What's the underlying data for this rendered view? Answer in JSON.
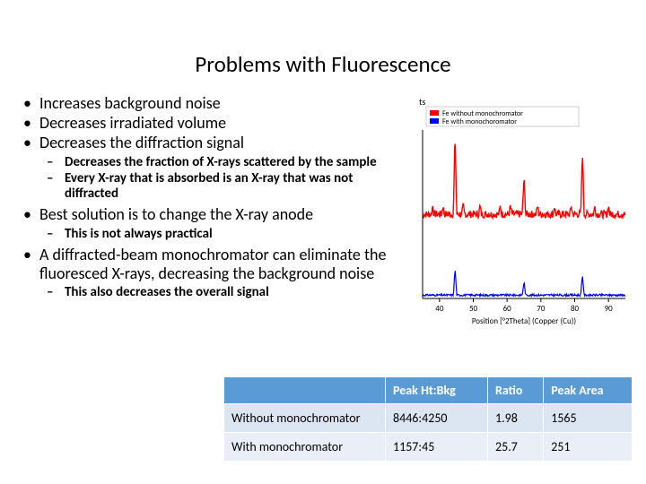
{
  "title": "Problems with Fluorescence",
  "bullets": {
    "b1": "Increases background noise",
    "b2": "Decreases irradiated volume",
    "b3": "Decreases the diffraction signal",
    "b3a": "Decreases the fraction of X-rays scattered by the sample",
    "b3b": "Every X-ray that is absorbed is an X-ray that was not diffracted",
    "b4": "Best solution is to change the X-ray anode",
    "b4a": "This is not always practical",
    "b5": "A diffracted-beam monochromator can eliminate the fluoresced X-rays, decreasing the background noise",
    "b5a": "This also decreases the overall signal"
  },
  "chart": {
    "type": "line",
    "axis_label_top": "ts",
    "legend": {
      "s1_label": "Fe without monochromator",
      "s1_color": "#ff0000",
      "s2_label": "Fe with monochoromator",
      "s2_color": "#0000ff"
    },
    "xlabel": "Position [°2Theta] (Copper (Cu))",
    "xticks": [
      40,
      50,
      60,
      70,
      80,
      90
    ],
    "xlim": [
      35,
      95
    ],
    "ylim": [
      0,
      100
    ],
    "background_color": "#ffffff",
    "axis_color": "#000000",
    "tick_fontsize": 9,
    "label_fontsize": 9,
    "series1": {
      "color": "#ff0000",
      "baseline": 50,
      "line_width": 1.4,
      "noise": 2.2,
      "peaks": [
        {
          "x": 44.6,
          "h": 48
        },
        {
          "x": 65.0,
          "h": 22
        },
        {
          "x": 82.3,
          "h": 38
        }
      ],
      "bumps_x": [
        38,
        41,
        47,
        52,
        58,
        61,
        69,
        74,
        79,
        86,
        90
      ],
      "bumps_h": 5
    },
    "series2": {
      "color": "#0000ff",
      "baseline": 2,
      "line_width": 1.2,
      "noise": 0.6,
      "peaks": [
        {
          "x": 44.6,
          "h": 16
        },
        {
          "x": 65.0,
          "h": 8
        },
        {
          "x": 82.3,
          "h": 12
        }
      ]
    }
  },
  "table": {
    "columns": {
      "c0": "",
      "c1": "Peak Ht:Bkg",
      "c2": "Ratio",
      "c3": "Peak Area"
    },
    "rows": {
      "r0": {
        "label": "Without monochromator",
        "c1": "8446:4250",
        "c2": "1.98",
        "c3": "1565"
      },
      "r1": {
        "label": "With monochromator",
        "c1": "1157:45",
        "c2": "25.7",
        "c3": "251"
      }
    },
    "header_bg": "#5b9bd5",
    "row_bg_a": "#dce6f2",
    "row_bg_b": "#eaeff7"
  }
}
